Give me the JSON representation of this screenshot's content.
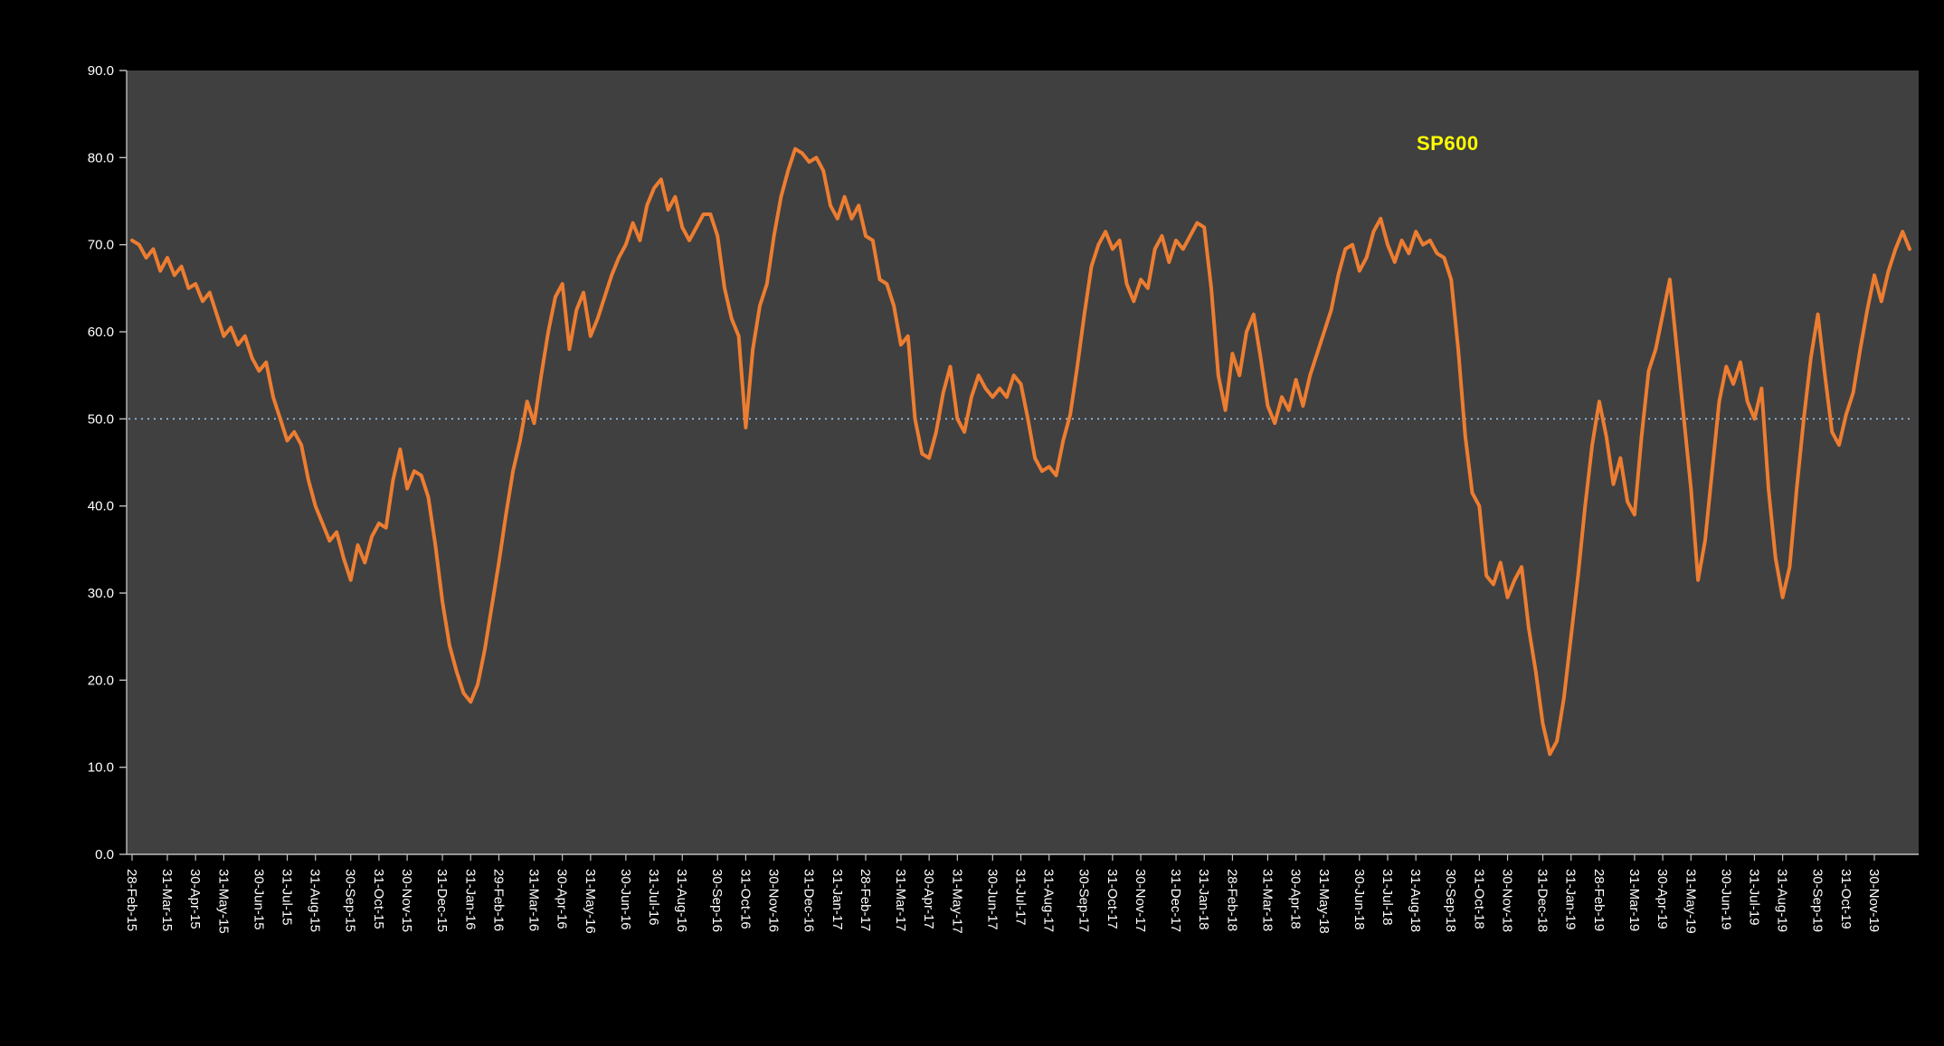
{
  "page": {
    "background": "#000000"
  },
  "chart_data": {
    "type": "line",
    "title": "",
    "series_label": "SP600",
    "series_color": "#ED7D31",
    "series_label_color": "#FFFF00",
    "plot_bg": "#404040",
    "axis_color": "#BFBFBF",
    "label_color": "#FFFFFF",
    "grid": "off",
    "legend_position": "none",
    "reference_line": {
      "value": 50,
      "color": "#9DC3E6",
      "style": "dotted"
    },
    "ylim": [
      0,
      90
    ],
    "y_tick_labels": [
      "0.0",
      "10.0",
      "20.0",
      "30.0",
      "40.0",
      "50.0",
      "60.0",
      "70.0",
      "80.0",
      "90.0"
    ],
    "x_tick_labels": [
      "28-Feb-15",
      "31-Mar-15",
      "30-Apr-15",
      "31-May-15",
      "30-Jun-15",
      "31-Jul-15",
      "31-Aug-15",
      "30-Sep-15",
      "31-Oct-15",
      "30-Nov-15",
      "31-Dec-15",
      "31-Jan-16",
      "29-Feb-16",
      "31-Mar-16",
      "30-Apr-16",
      "31-May-16",
      "30-Jun-16",
      "31-Jul-16",
      "31-Aug-16",
      "30-Sep-16",
      "31-Oct-16",
      "30-Nov-16",
      "31-Dec-16",
      "31-Jan-17",
      "28-Feb-17",
      "31-Mar-17",
      "30-Apr-17",
      "31-May-17",
      "30-Jun-17",
      "31-Jul-17",
      "31-Aug-17",
      "30-Sep-17",
      "31-Oct-17",
      "30-Nov-17",
      "31-Dec-17",
      "31-Jan-18",
      "28-Feb-18",
      "31-Mar-18",
      "30-Apr-18",
      "31-May-18",
      "30-Jun-18",
      "31-Jul-18",
      "31-Aug-18",
      "30-Sep-18",
      "31-Oct-18",
      "30-Nov-18",
      "31-Dec-18",
      "31-Jan-19",
      "28-Feb-19",
      "31-Mar-19",
      "30-Apr-19",
      "31-May-19",
      "30-Jun-19",
      "31-Jul-19",
      "31-Aug-19",
      "30-Sep-19",
      "31-Oct-19",
      "30-Nov-19"
    ],
    "x_tick_positions": [
      0,
      5,
      9,
      13,
      18,
      22,
      26,
      31,
      35,
      39,
      44,
      48,
      52,
      57,
      61,
      65,
      70,
      74,
      78,
      83,
      87,
      91,
      96,
      100,
      104,
      109,
      113,
      117,
      122,
      126,
      130,
      135,
      139,
      143,
      148,
      152,
      156,
      161,
      165,
      169,
      174,
      178,
      182,
      187,
      191,
      195,
      200,
      204,
      208,
      213,
      217,
      221,
      226,
      230,
      234,
      239,
      243,
      247
    ],
    "values": [
      70.5,
      70,
      68.5,
      69.5,
      67,
      68.5,
      66.5,
      67.5,
      65,
      65.5,
      63.5,
      64.5,
      62,
      59.5,
      60.5,
      58.5,
      59.5,
      57,
      55.5,
      56.5,
      52.5,
      50,
      47.5,
      48.5,
      47,
      43,
      40,
      38,
      36,
      37,
      34,
      31.5,
      35.5,
      33.5,
      36.5,
      38,
      37.5,
      43,
      46.5,
      42,
      44,
      43.5,
      41,
      35.5,
      29,
      24,
      21,
      18.5,
      17.5,
      19.5,
      23.5,
      28.5,
      33.5,
      39,
      44,
      47.5,
      52,
      49.5,
      55,
      60,
      64,
      65.5,
      58,
      62.5,
      64.5,
      59.5,
      61.5,
      64,
      66.5,
      68.5,
      70,
      72.5,
      70.5,
      74.5,
      76.5,
      77.5,
      74,
      75.5,
      72,
      70.5,
      72,
      73.5,
      73.5,
      71,
      65,
      61.5,
      59.5,
      49,
      58,
      63,
      65.5,
      71,
      75.5,
      78.5,
      81,
      80.5,
      79.5,
      80,
      78.5,
      74.5,
      73,
      75.5,
      73,
      74.5,
      71,
      70.5,
      66,
      65.5,
      63,
      58.5,
      59.5,
      50,
      46,
      45.5,
      48.5,
      53,
      56,
      50,
      48.5,
      52.5,
      55,
      53.5,
      52.5,
      53.5,
      52.5,
      55,
      54,
      50,
      45.5,
      44,
      44.5,
      43.5,
      47.5,
      50.5,
      56,
      62,
      67.5,
      70,
      71.5,
      69.5,
      70.5,
      65.5,
      63.5,
      66,
      65,
      69.5,
      71,
      68,
      70.5,
      69.5,
      71,
      72.5,
      72,
      65,
      55,
      51,
      57.5,
      55,
      60,
      62,
      57,
      51.5,
      49.5,
      52.5,
      51,
      54.5,
      51.5,
      55,
      57.5,
      60,
      62.5,
      66.5,
      69.5,
      70,
      67,
      68.5,
      71.5,
      73,
      70,
      68,
      70.5,
      69,
      71.5,
      70,
      70.5,
      69,
      68.5,
      66,
      58,
      48,
      41.5,
      40,
      32,
      31,
      33.5,
      29.5,
      31.5,
      33,
      26,
      21,
      15,
      11.5,
      13,
      18,
      25,
      32,
      40,
      47,
      52,
      48,
      42.5,
      45.5,
      40.5,
      39,
      48,
      55.5,
      58,
      62,
      66,
      58,
      50,
      42,
      31.5,
      36,
      44,
      52,
      56,
      54,
      56.5,
      52,
      50,
      53.5,
      42,
      34,
      29.5,
      33,
      42,
      50,
      57,
      62,
      55,
      48.5,
      47,
      50.5,
      53,
      58,
      62.5,
      66.5,
      63.5,
      67,
      69.5,
      71.5,
      69.5
    ]
  }
}
